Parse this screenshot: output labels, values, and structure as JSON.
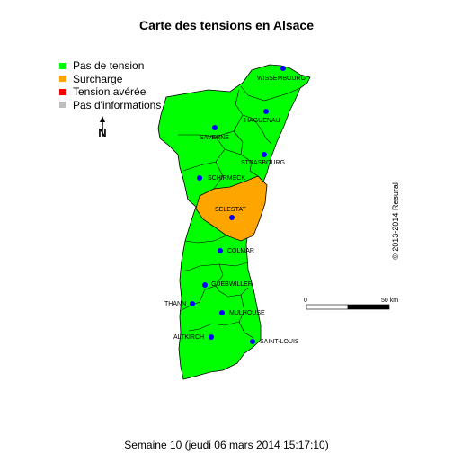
{
  "title": "Carte des tensions en Alsace",
  "legend": [
    {
      "label": "Pas de tension",
      "color": "#00ff00"
    },
    {
      "label": "Surcharge",
      "color": "#ffa500"
    },
    {
      "label": "Tension avérée",
      "color": "#ff0000"
    },
    {
      "label": "Pas d'informations",
      "color": "#bebebe"
    }
  ],
  "compass_label": "N",
  "cities": [
    {
      "name": "WISSEMBOURG"
    },
    {
      "name": "HAGUENAU"
    },
    {
      "name": "SAVERNE"
    },
    {
      "name": "STRASBOURG"
    },
    {
      "name": "SCHIRMECK"
    },
    {
      "name": "SELESTAT"
    },
    {
      "name": "COLMAR"
    },
    {
      "name": "GUEBWILLER"
    },
    {
      "name": "THANN"
    },
    {
      "name": "MULHOUSE"
    },
    {
      "name": "ALTKIRCH"
    },
    {
      "name": "SAINT-LOUIS"
    }
  ],
  "scale": {
    "start": "0",
    "end": "50 km"
  },
  "copyright": "© 2013-2014 Resural",
  "footer": "Semaine 10 (jeudi 06 mars 2014 15:17:10)",
  "colors": {
    "no_tension": "#00ff00",
    "overload": "#ffa500",
    "city_dot": "#0000ff"
  }
}
